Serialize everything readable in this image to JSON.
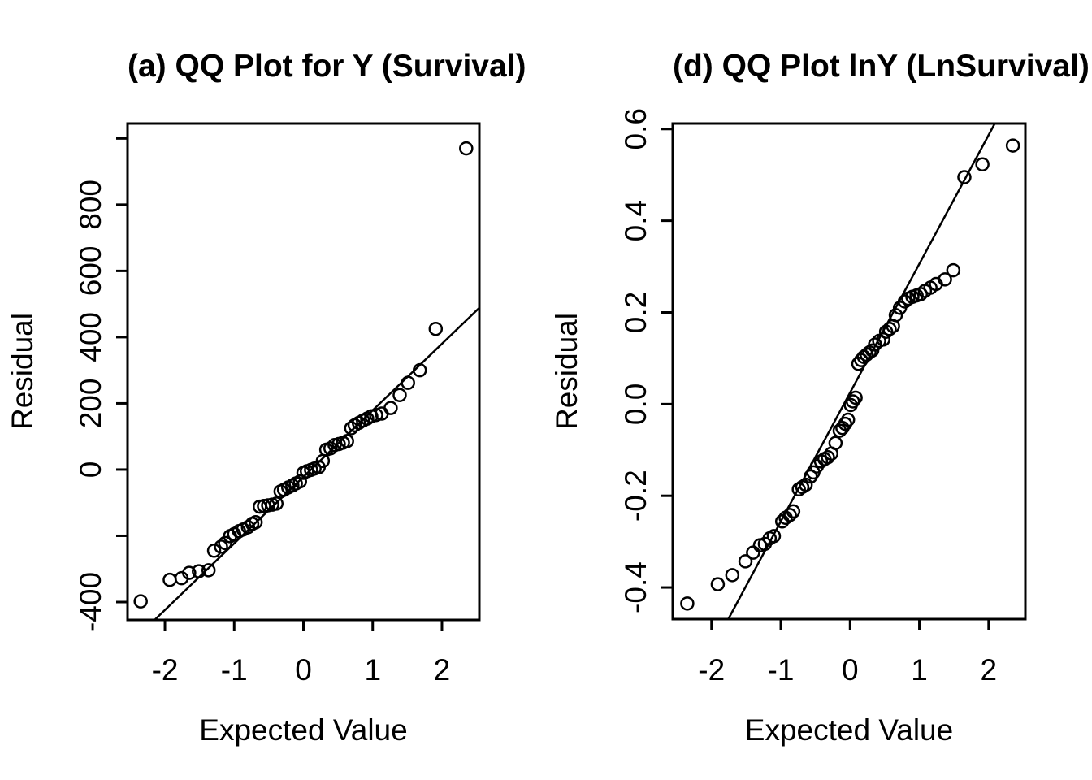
{
  "figure": {
    "background": "#ffffff",
    "foreground": "#000000",
    "grid": false,
    "legend": null
  },
  "chart_data": [
    {
      "id": "a",
      "type": "scatter",
      "title": "(a) QQ Plot for Y (Survival)",
      "xlabel": "Expected Value",
      "ylabel": "Residual",
      "xlim": [
        -2.54,
        2.54
      ],
      "ylim": [
        -454,
        1045
      ],
      "xticks": [
        {
          "v": -2,
          "label": "-2"
        },
        {
          "v": -1,
          "label": "-1"
        },
        {
          "v": 0,
          "label": "0"
        },
        {
          "v": 1,
          "label": "1"
        },
        {
          "v": 2,
          "label": "2"
        }
      ],
      "yticks": [
        {
          "v": 1000,
          "label": ""
        },
        {
          "v": 800,
          "label": "800"
        },
        {
          "v": 600,
          "label": "600"
        },
        {
          "v": 400,
          "label": "400"
        },
        {
          "v": 200,
          "label": "200"
        },
        {
          "v": 0,
          "label": "0"
        },
        {
          "v": -200,
          "label": ""
        },
        {
          "v": -400,
          "label": "-400"
        }
      ],
      "qqline": {
        "intercept": -22,
        "slope": 201
      },
      "points": [
        [
          -2.35,
          -398
        ],
        [
          -1.93,
          -333
        ],
        [
          -1.76,
          -328
        ],
        [
          -1.65,
          -312
        ],
        [
          -1.51,
          -307
        ],
        [
          -1.37,
          -304
        ],
        [
          -1.29,
          -245
        ],
        [
          -1.19,
          -233
        ],
        [
          -1.13,
          -222
        ],
        [
          -1.06,
          -201
        ],
        [
          -1.0,
          -195
        ],
        [
          -0.93,
          -186
        ],
        [
          -0.87,
          -181
        ],
        [
          -0.8,
          -174
        ],
        [
          -0.74,
          -164
        ],
        [
          -0.69,
          -159
        ],
        [
          -0.63,
          -112
        ],
        [
          -0.57,
          -110
        ],
        [
          -0.51,
          -108
        ],
        [
          -0.45,
          -106
        ],
        [
          -0.39,
          -103
        ],
        [
          -0.33,
          -66
        ],
        [
          -0.28,
          -61
        ],
        [
          -0.22,
          -54
        ],
        [
          -0.16,
          -48
        ],
        [
          -0.11,
          -42
        ],
        [
          -0.05,
          -36
        ],
        [
          0.0,
          -10
        ],
        [
          0.05,
          -5
        ],
        [
          0.11,
          -1
        ],
        [
          0.16,
          3
        ],
        [
          0.22,
          7
        ],
        [
          0.28,
          26
        ],
        [
          0.33,
          60
        ],
        [
          0.39,
          64
        ],
        [
          0.45,
          74
        ],
        [
          0.51,
          77
        ],
        [
          0.57,
          81
        ],
        [
          0.63,
          86
        ],
        [
          0.69,
          125
        ],
        [
          0.74,
          134
        ],
        [
          0.8,
          141
        ],
        [
          0.86,
          148
        ],
        [
          0.92,
          154
        ],
        [
          0.98,
          161
        ],
        [
          1.05,
          165
        ],
        [
          1.13,
          169
        ],
        [
          1.26,
          186
        ],
        [
          1.39,
          225
        ],
        [
          1.51,
          262
        ],
        [
          1.68,
          300
        ],
        [
          1.91,
          425
        ],
        [
          2.35,
          970
        ]
      ]
    },
    {
      "id": "d",
      "type": "scatter",
      "title": "(d) QQ Plot lnY (LnSurvival)",
      "xlabel": "Expected Value",
      "ylabel": "Residual",
      "xlim": [
        -2.56,
        2.53
      ],
      "ylim": [
        -0.469,
        0.612
      ],
      "xticks": [
        {
          "v": -2,
          "label": "-2"
        },
        {
          "v": -1,
          "label": "-1"
        },
        {
          "v": 0,
          "label": "0"
        },
        {
          "v": 1,
          "label": "1"
        },
        {
          "v": 2,
          "label": "2"
        }
      ],
      "yticks": [
        {
          "v": 0.6,
          "label": "0.6"
        },
        {
          "v": 0.4,
          "label": "0.4"
        },
        {
          "v": 0.2,
          "label": "0.2"
        },
        {
          "v": 0.0,
          "label": "0.0"
        },
        {
          "v": -0.2,
          "label": "-0.2"
        },
        {
          "v": -0.4,
          "label": "-0.4"
        }
      ],
      "qqline": {
        "intercept": 0.025,
        "slope": 0.281
      },
      "points": [
        [
          -2.35,
          -0.435
        ],
        [
          -1.91,
          -0.393
        ],
        [
          -1.7,
          -0.373
        ],
        [
          -1.51,
          -0.343
        ],
        [
          -1.4,
          -0.324
        ],
        [
          -1.3,
          -0.308
        ],
        [
          -1.23,
          -0.305
        ],
        [
          -1.16,
          -0.293
        ],
        [
          -1.1,
          -0.288
        ],
        [
          -0.98,
          -0.256
        ],
        [
          -0.93,
          -0.248
        ],
        [
          -0.87,
          -0.242
        ],
        [
          -0.82,
          -0.234
        ],
        [
          -0.74,
          -0.186
        ],
        [
          -0.69,
          -0.181
        ],
        [
          -0.64,
          -0.176
        ],
        [
          -0.57,
          -0.158
        ],
        [
          -0.53,
          -0.149
        ],
        [
          -0.48,
          -0.136
        ],
        [
          -0.42,
          -0.125
        ],
        [
          -0.37,
          -0.12
        ],
        [
          -0.32,
          -0.116
        ],
        [
          -0.27,
          -0.108
        ],
        [
          -0.21,
          -0.085
        ],
        [
          -0.15,
          -0.058
        ],
        [
          -0.11,
          -0.052
        ],
        [
          -0.07,
          -0.043
        ],
        [
          -0.03,
          -0.034
        ],
        [
          0.01,
          -0.002
        ],
        [
          0.04,
          0.006
        ],
        [
          0.08,
          0.014
        ],
        [
          0.12,
          0.088
        ],
        [
          0.16,
          0.096
        ],
        [
          0.2,
          0.103
        ],
        [
          0.24,
          0.108
        ],
        [
          0.28,
          0.113
        ],
        [
          0.32,
          0.117
        ],
        [
          0.36,
          0.13
        ],
        [
          0.42,
          0.138
        ],
        [
          0.48,
          0.141
        ],
        [
          0.52,
          0.158
        ],
        [
          0.57,
          0.164
        ],
        [
          0.62,
          0.17
        ],
        [
          0.66,
          0.194
        ],
        [
          0.72,
          0.21
        ],
        [
          0.79,
          0.224
        ],
        [
          0.84,
          0.23
        ],
        [
          0.9,
          0.234
        ],
        [
          0.96,
          0.237
        ],
        [
          1.02,
          0.24
        ],
        [
          1.08,
          0.247
        ],
        [
          1.16,
          0.254
        ],
        [
          1.24,
          0.262
        ],
        [
          1.37,
          0.272
        ],
        [
          1.49,
          0.292
        ],
        [
          1.65,
          0.495
        ],
        [
          1.91,
          0.523
        ],
        [
          2.35,
          0.564
        ]
      ]
    }
  ]
}
